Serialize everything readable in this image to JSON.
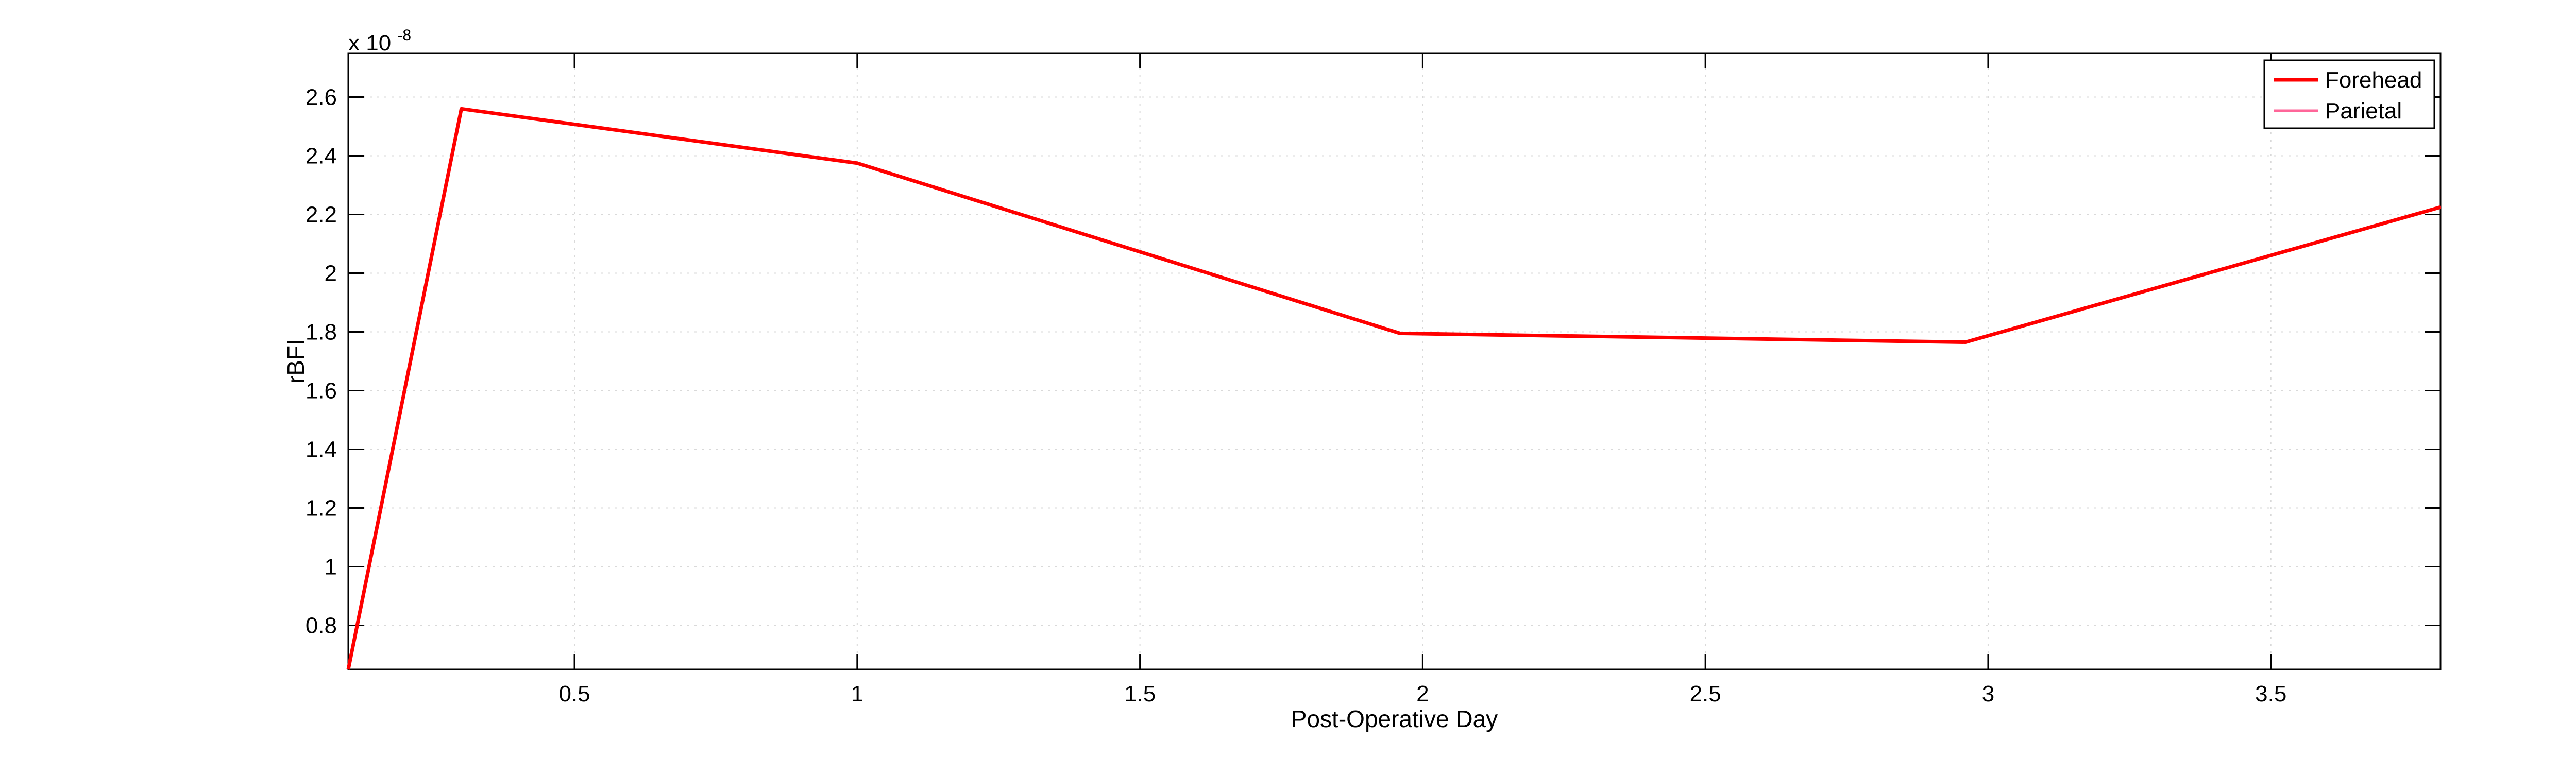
{
  "chart_data": {
    "type": "line",
    "title": "",
    "xlabel": "Post-Operative Day",
    "ylabel": "rBFI",
    "y_exponent_label": {
      "base": "x 10",
      "exponent": "-8"
    },
    "xlim": [
      0.1,
      3.8
    ],
    "ylim": [
      0.65,
      2.75
    ],
    "x_ticks": [
      0.5,
      1,
      1.5,
      2,
      2.5,
      3,
      3.5
    ],
    "x_tick_labels": [
      "0.5",
      "1",
      "1.5",
      "2",
      "2.5",
      "3",
      "3.5"
    ],
    "y_ticks": [
      0.8,
      1,
      1.2,
      1.4,
      1.6,
      1.8,
      2,
      2.2,
      2.4,
      2.6
    ],
    "y_tick_labels": [
      "0.8",
      "1",
      "1.2",
      "1.4",
      "1.6",
      "1.8",
      "2",
      "2.2",
      "2.4",
      "2.6"
    ],
    "grid": true,
    "legend_position": "top-right",
    "series": [
      {
        "name": "Forehead",
        "color": "#ff0000",
        "x": [
          0.1,
          0.3,
          1.0,
          1.96,
          2.96,
          3.8
        ],
        "y": [
          0.65,
          2.56,
          2.375,
          1.795,
          1.765,
          2.225
        ]
      },
      {
        "name": "Parietal",
        "color": "#ff6699",
        "x": [
          0.1,
          0.3,
          1.0,
          1.96,
          2.96,
          3.8
        ],
        "y": [
          0.65,
          2.56,
          2.375,
          1.795,
          1.765,
          2.225
        ]
      }
    ]
  }
}
